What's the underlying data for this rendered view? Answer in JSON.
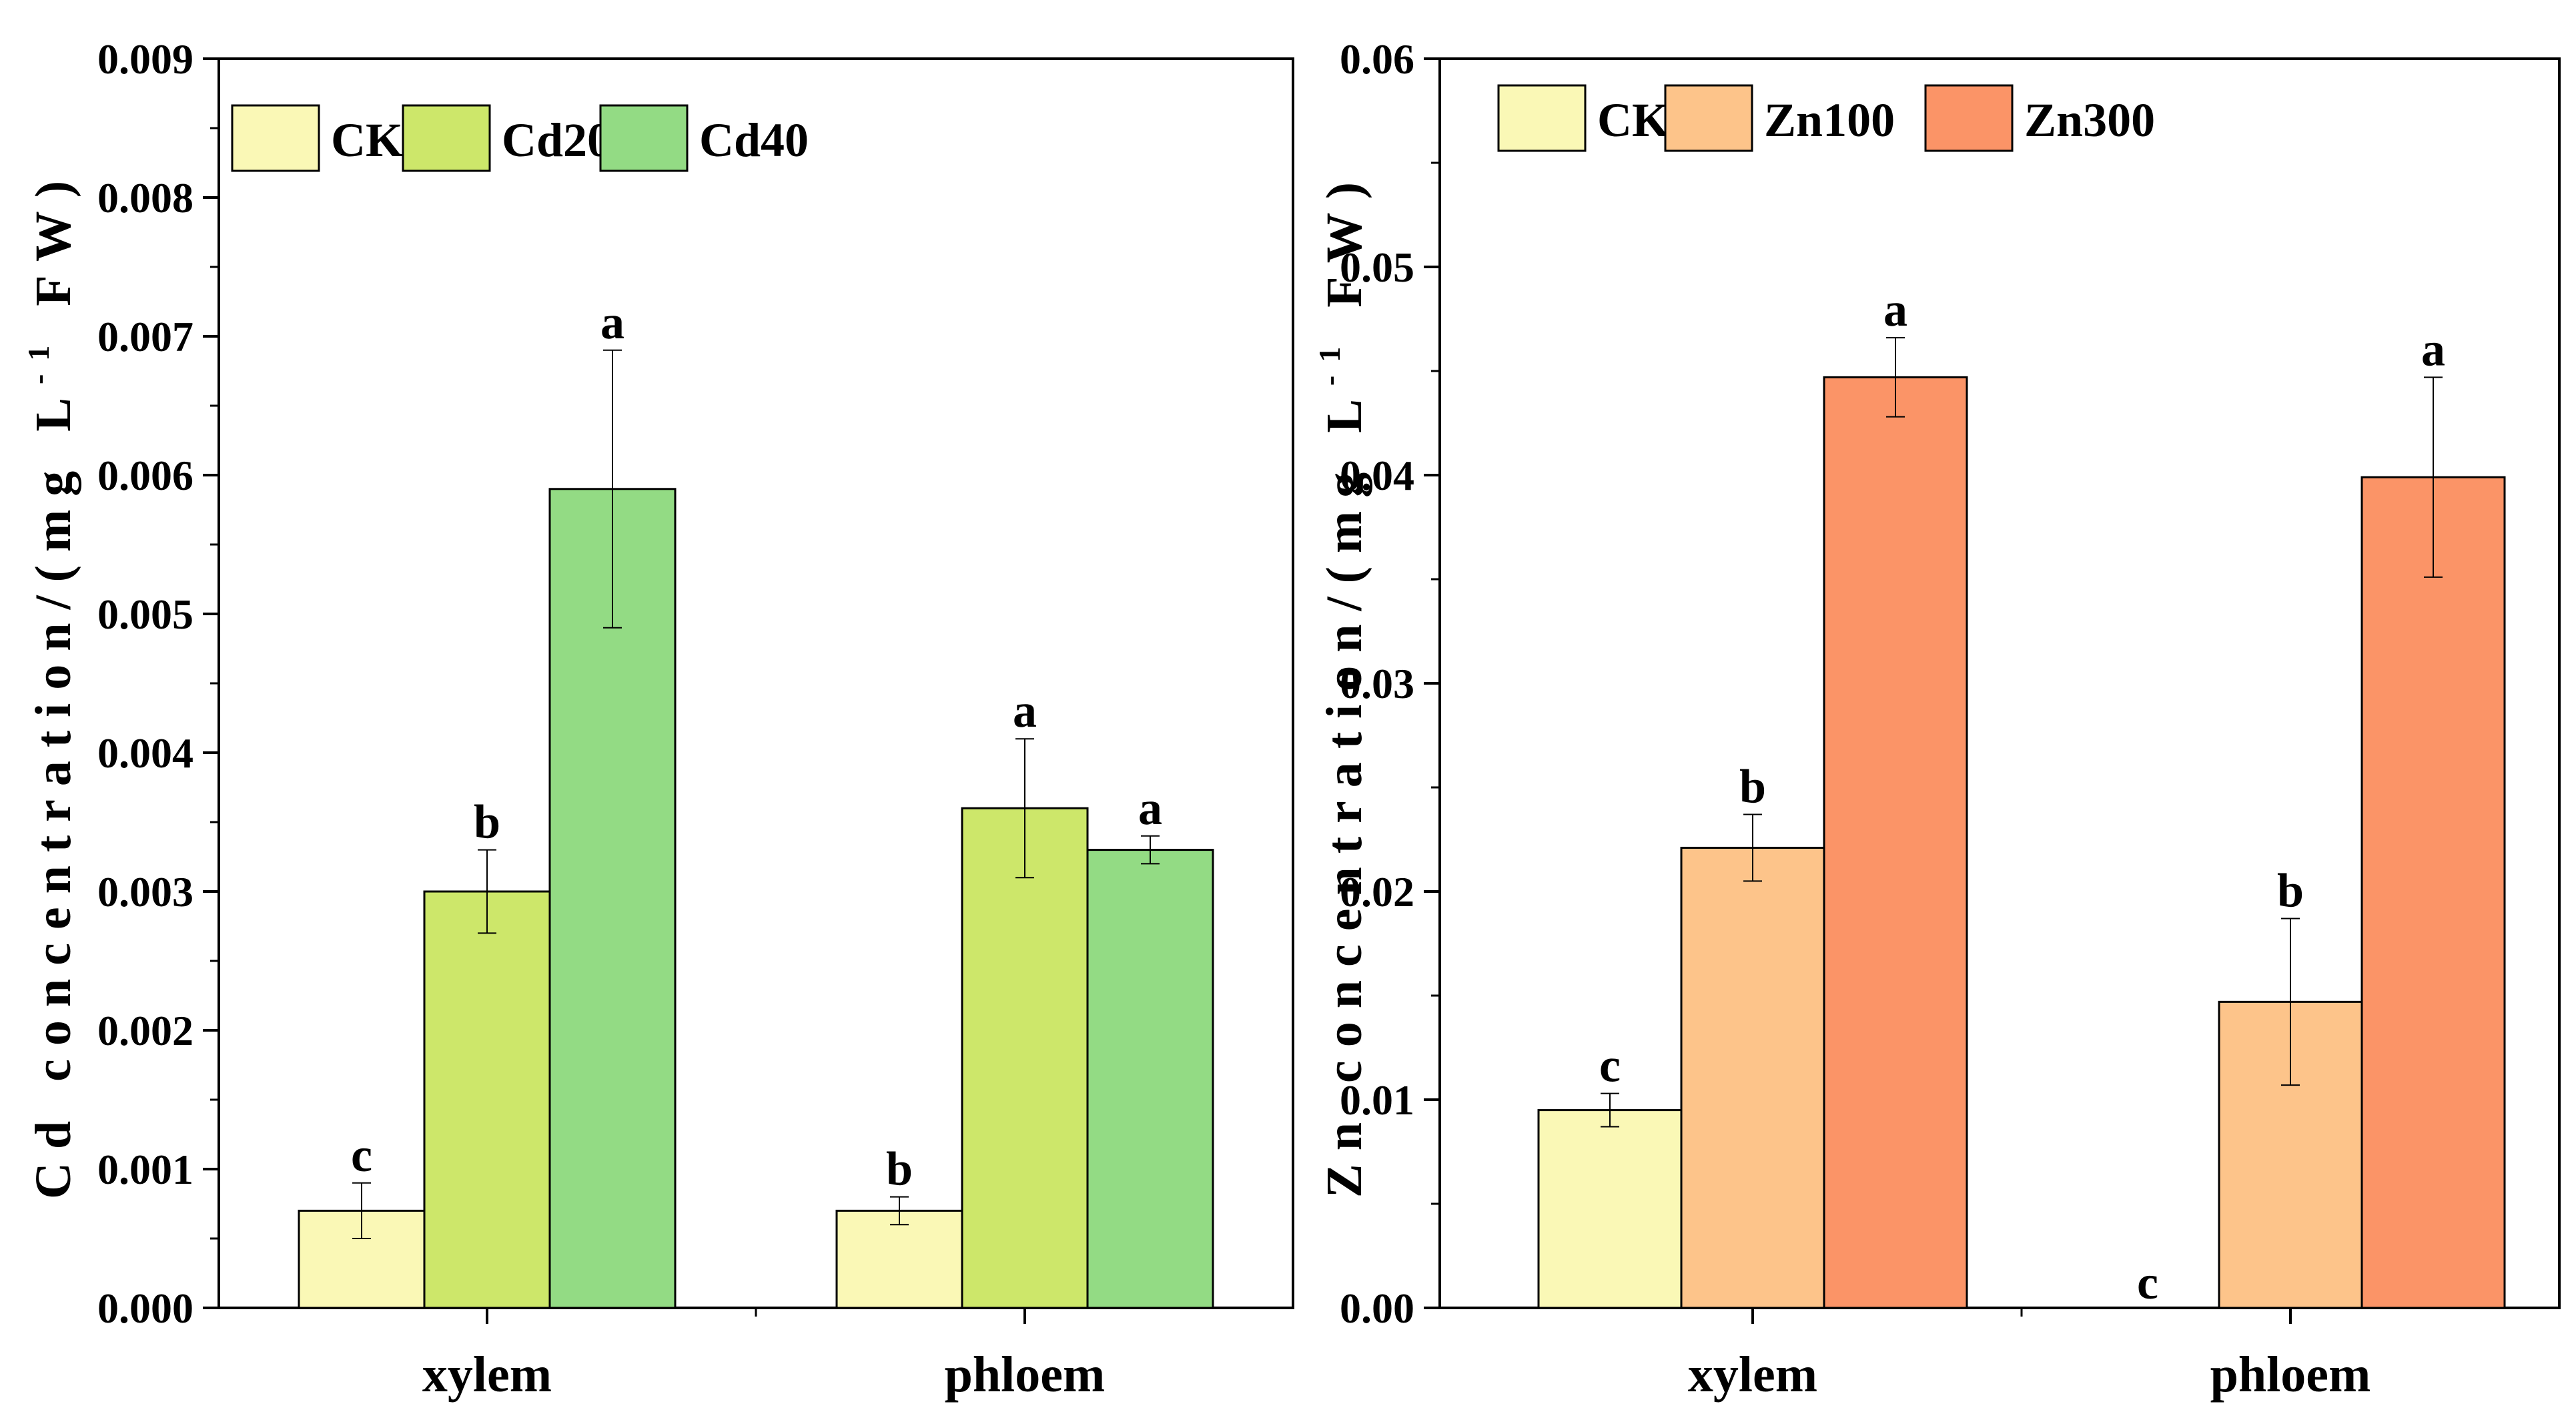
{
  "chart_data": [
    {
      "type": "bar",
      "title": "",
      "xlabel": "",
      "ylabel": {
        "prefix": "Cd concentration/(mg L",
        "superscript": "-1",
        "suffix": " FW)"
      },
      "ylim": [
        0,
        0.009
      ],
      "yticks": [
        "0.000",
        "0.001",
        "0.002",
        "0.003",
        "0.004",
        "0.005",
        "0.006",
        "0.007",
        "0.008",
        "0.009"
      ],
      "categories": [
        "xylem",
        "phloem"
      ],
      "legend": {
        "position": "top-left"
      },
      "series": [
        {
          "name": "CK",
          "color": "#FAF8B6",
          "values": [
            0.0007,
            0.0007
          ],
          "errors": [
            0.0002,
            0.0001
          ],
          "letters": [
            "c",
            "b"
          ]
        },
        {
          "name": "Cd20",
          "color": "#CDE76A",
          "values": [
            0.003,
            0.0036
          ],
          "errors": [
            0.0003,
            0.0005
          ],
          "letters": [
            "b",
            "a"
          ]
        },
        {
          "name": "Cd40",
          "color": "#93DB84",
          "values": [
            0.0059,
            0.0033
          ],
          "errors": [
            0.001,
            0.0001
          ],
          "letters": [
            "a",
            "a"
          ]
        }
      ]
    },
    {
      "type": "bar",
      "title": "",
      "xlabel": "",
      "ylabel": {
        "prefix": "Zn concentration/(mg L",
        "superscript": "-1",
        "suffix": " FW)"
      },
      "ylim": [
        0,
        0.06
      ],
      "yticks": [
        "0.00",
        "0.01",
        "0.02",
        "0.03",
        "0.04",
        "0.05",
        "0.06"
      ],
      "categories": [
        "xylem",
        "phloem"
      ],
      "legend": {
        "position": "top-left"
      },
      "series": [
        {
          "name": "CK",
          "color": "#FAF8B6",
          "values": [
            0.0095,
            0
          ],
          "errors": [
            0.0008,
            0
          ],
          "letters": [
            "c",
            "c"
          ]
        },
        {
          "name": "Zn100",
          "color": "#FDC48A",
          "values": [
            0.0221,
            0.0147
          ],
          "errors": [
            0.0016,
            0.004
          ],
          "letters": [
            "b",
            "b"
          ]
        },
        {
          "name": "Zn300",
          "color": "#FB9467",
          "values": [
            0.0447,
            0.0399
          ],
          "errors": [
            0.0019,
            0.0048
          ],
          "letters": [
            "a",
            "a"
          ]
        }
      ]
    }
  ]
}
